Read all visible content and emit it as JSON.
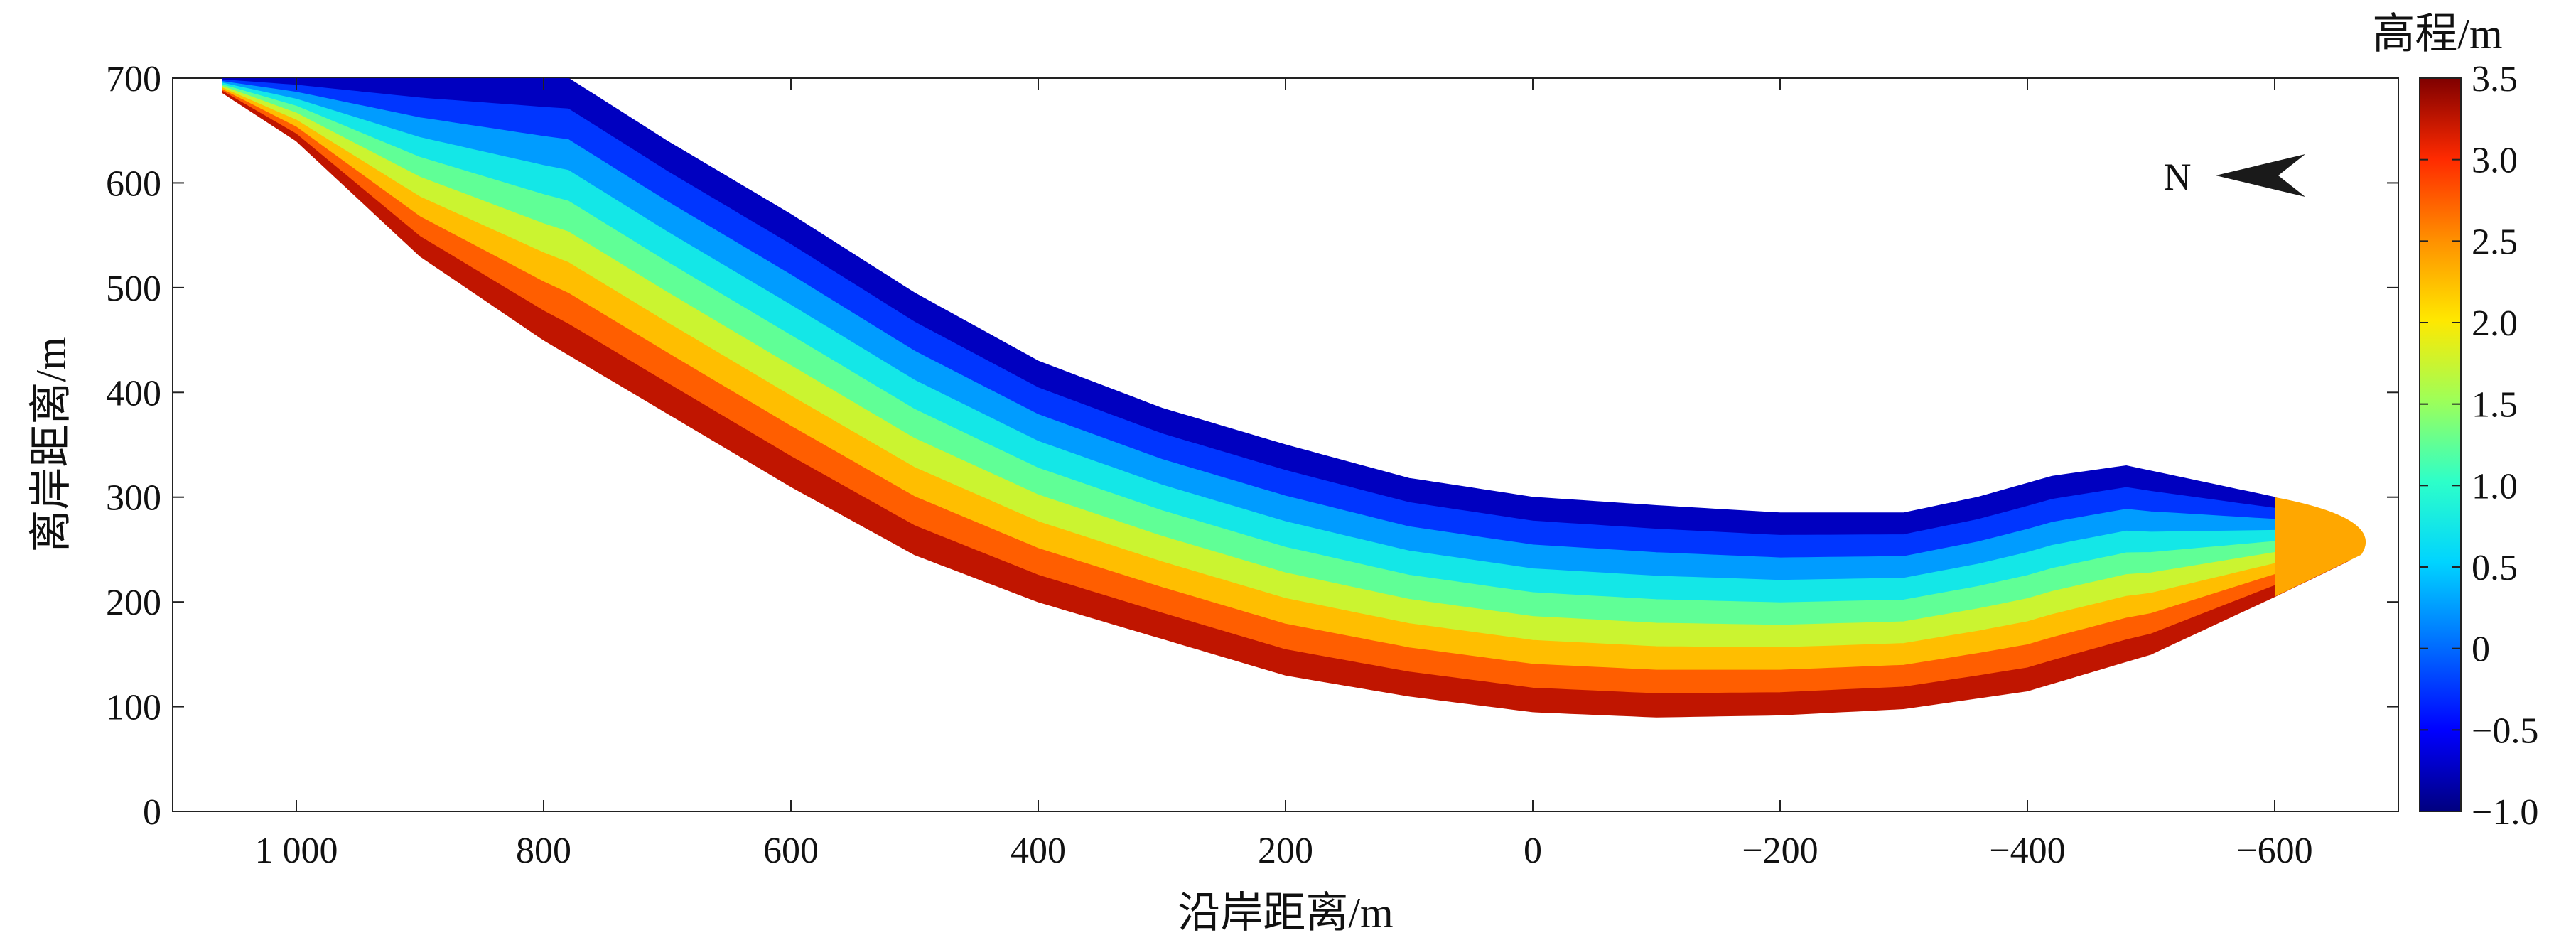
{
  "chart_data": {
    "type": "heatmap",
    "xlabel": "沿岸距离/m",
    "ylabel": "离岸距离/m",
    "xlim": [
      1100,
      -700
    ],
    "ylim": [
      0,
      700
    ],
    "xticks": [
      1000,
      800,
      600,
      400,
      200,
      0,
      -200,
      -400,
      -600
    ],
    "xtick_labels": [
      "1 000",
      "800",
      "600",
      "400",
      "200",
      "0",
      "−200",
      "−400",
      "−600"
    ],
    "yticks": [
      0,
      100,
      200,
      300,
      400,
      500,
      600,
      700
    ],
    "ytick_labels": [
      "0",
      "100",
      "200",
      "300",
      "400",
      "500",
      "600",
      "700"
    ],
    "north_label": "N",
    "colorbar": {
      "title": "高程/m",
      "range": [
        -1.0,
        3.5
      ],
      "ticks": [
        -1.0,
        -0.5,
        0,
        0.5,
        1.0,
        1.5,
        2.0,
        2.5,
        3.0,
        3.5
      ],
      "tick_labels": [
        "−1.0",
        "−0.5",
        "0",
        "0.5",
        "1.0",
        "1.5",
        "2.0",
        "2.5",
        "3.0",
        "3.5"
      ],
      "colormap": "jet"
    },
    "beach": {
      "landward_edge": [
        [
          1065,
          690
        ],
        [
          1000,
          640
        ],
        [
          900,
          530
        ],
        [
          800,
          450
        ],
        [
          700,
          380
        ],
        [
          600,
          310
        ],
        [
          500,
          245
        ],
        [
          400,
          200
        ],
        [
          300,
          165
        ],
        [
          200,
          130
        ],
        [
          100,
          110
        ],
        [
          0,
          95
        ],
        [
          -100,
          90
        ],
        [
          -200,
          92
        ],
        [
          -300,
          98
        ],
        [
          -400,
          115
        ],
        [
          -500,
          150
        ],
        [
          -600,
          205
        ],
        [
          -670,
          245
        ]
      ],
      "seaward_edge": [
        [
          -670,
          245
        ],
        [
          -640,
          280
        ],
        [
          -600,
          300
        ],
        [
          -520,
          320
        ],
        [
          -480,
          330
        ],
        [
          -420,
          320
        ],
        [
          -360,
          300
        ],
        [
          -300,
          285
        ],
        [
          -200,
          285
        ],
        [
          -100,
          292
        ],
        [
          0,
          300
        ],
        [
          100,
          318
        ],
        [
          200,
          350
        ],
        [
          300,
          385
        ],
        [
          400,
          430
        ],
        [
          500,
          495
        ],
        [
          600,
          570
        ],
        [
          700,
          640
        ],
        [
          780,
          700
        ],
        [
          1065,
          700
        ]
      ],
      "contour_levels": [
        -1.0,
        -0.5,
        0,
        0.5,
        1.0,
        1.5,
        2.0,
        2.5,
        3.0
      ]
    }
  }
}
